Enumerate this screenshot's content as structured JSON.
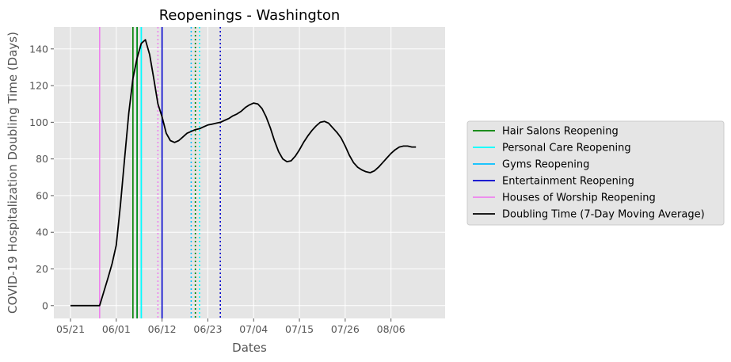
{
  "chart_data": {
    "type": "line",
    "title": "Reopenings - Washington",
    "xlabel": "Dates",
    "ylabel": "COVID-19 Hospitalization Doubling Time (Days)",
    "x_axis": {
      "type": "date",
      "start": "2020-05-21",
      "ticks": [
        "2020-05-21",
        "2020-06-01",
        "2020-06-12",
        "2020-06-23",
        "2020-07-04",
        "2020-07-15",
        "2020-07-26",
        "2020-08-06"
      ],
      "tick_labels": [
        "05/21",
        "06/01",
        "06/12",
        "06/23",
        "07/04",
        "07/15",
        "07/26",
        "08/06"
      ],
      "xlim": [
        "2020-05-17",
        "2020-08-19"
      ]
    },
    "y_axis": {
      "ticks": [
        0,
        20,
        40,
        60,
        80,
        100,
        120,
        140
      ],
      "tick_labels": [
        "0",
        "20",
        "40",
        "60",
        "80",
        "100",
        "120",
        "140"
      ],
      "ylim": [
        -7,
        152
      ]
    },
    "grid": true,
    "legend": {
      "placement": "outside-right"
    },
    "series": [
      {
        "name": "Doubling Time (7-Day Moving Average)",
        "color": "#000000",
        "points": [
          [
            "2020-05-21",
            0
          ],
          [
            "2020-05-23",
            0
          ],
          [
            "2020-05-25",
            0
          ],
          [
            "2020-05-28",
            0
          ],
          [
            "2020-05-30",
            15
          ],
          [
            "2020-05-31",
            23
          ],
          [
            "2020-06-01",
            33
          ],
          [
            "2020-06-02",
            55
          ],
          [
            "2020-06-03",
            80
          ],
          [
            "2020-06-04",
            105
          ],
          [
            "2020-06-05",
            124
          ],
          [
            "2020-06-06",
            135
          ],
          [
            "2020-06-07",
            143
          ],
          [
            "2020-06-08",
            145
          ],
          [
            "2020-06-09",
            137
          ],
          [
            "2020-06-10",
            124
          ],
          [
            "2020-06-11",
            110
          ],
          [
            "2020-06-12",
            103
          ],
          [
            "2020-06-13",
            94
          ],
          [
            "2020-06-14",
            90
          ],
          [
            "2020-06-15",
            89
          ],
          [
            "2020-06-16",
            90
          ],
          [
            "2020-06-17",
            92
          ],
          [
            "2020-06-18",
            94
          ],
          [
            "2020-06-19",
            95
          ],
          [
            "2020-06-20",
            96
          ],
          [
            "2020-06-21",
            96.5
          ],
          [
            "2020-06-22",
            97.5
          ],
          [
            "2020-06-23",
            98.5
          ],
          [
            "2020-06-24",
            99
          ],
          [
            "2020-06-25",
            99.5
          ],
          [
            "2020-06-26",
            100
          ],
          [
            "2020-06-27",
            101
          ],
          [
            "2020-06-28",
            102
          ],
          [
            "2020-06-29",
            103.5
          ],
          [
            "2020-06-30",
            104.5
          ],
          [
            "2020-07-01",
            106
          ],
          [
            "2020-07-02",
            108
          ],
          [
            "2020-07-03",
            109.5
          ],
          [
            "2020-07-04",
            110.5
          ],
          [
            "2020-07-05",
            110
          ],
          [
            "2020-07-06",
            107.5
          ],
          [
            "2020-07-07",
            103
          ],
          [
            "2020-07-08",
            97
          ],
          [
            "2020-07-09",
            90
          ],
          [
            "2020-07-10",
            84
          ],
          [
            "2020-07-11",
            80
          ],
          [
            "2020-07-12",
            78.5
          ],
          [
            "2020-07-13",
            79
          ],
          [
            "2020-07-14",
            81.5
          ],
          [
            "2020-07-15",
            85
          ],
          [
            "2020-07-16",
            89
          ],
          [
            "2020-07-17",
            92.5
          ],
          [
            "2020-07-18",
            95.5
          ],
          [
            "2020-07-19",
            98
          ],
          [
            "2020-07-20",
            100
          ],
          [
            "2020-07-21",
            100.5
          ],
          [
            "2020-07-22",
            99.5
          ],
          [
            "2020-07-23",
            97
          ],
          [
            "2020-07-24",
            94.5
          ],
          [
            "2020-07-25",
            91.5
          ],
          [
            "2020-07-26",
            87
          ],
          [
            "2020-07-27",
            82
          ],
          [
            "2020-07-28",
            78
          ],
          [
            "2020-07-29",
            75.5
          ],
          [
            "2020-07-30",
            74
          ],
          [
            "2020-07-31",
            73
          ],
          [
            "2020-08-01",
            72.5
          ],
          [
            "2020-08-02",
            73.5
          ],
          [
            "2020-08-03",
            75.5
          ],
          [
            "2020-08-04",
            78
          ],
          [
            "2020-08-05",
            80.5
          ],
          [
            "2020-08-06",
            83
          ],
          [
            "2020-08-07",
            85
          ],
          [
            "2020-08-08",
            86.5
          ],
          [
            "2020-08-09",
            87
          ],
          [
            "2020-08-10",
            87
          ],
          [
            "2020-08-11",
            86.5
          ],
          [
            "2020-08-12",
            86.5
          ]
        ]
      }
    ],
    "vlines": [
      {
        "name": "Houses of Worship Reopening",
        "color": "#ee82ee",
        "style": "solid",
        "date": "2020-05-28",
        "legend": true
      },
      {
        "name": "Hair Salons Reopening",
        "color": "#008000",
        "style": "solid",
        "date": "2020-06-05",
        "legend": true
      },
      {
        "name": "Personal Care Reopening",
        "color": "#00ffff",
        "style": "solid",
        "date": "2020-06-06",
        "legend": true
      },
      {
        "name": "Hair Salons Reopening",
        "color": "#008000",
        "style": "solid",
        "date": "2020-06-06",
        "legend": false
      },
      {
        "name": "Gyms Reopening",
        "color": "#00bfff",
        "style": "solid",
        "date": "2020-06-07",
        "legend": true
      },
      {
        "name": "Personal Care Reopening",
        "color": "#00ffff",
        "style": "solid",
        "date": "2020-06-07",
        "legend": false
      },
      {
        "name": "Entertainment Reopening",
        "color": "#0000cd",
        "style": "solid",
        "date": "2020-06-12",
        "legend": true
      },
      {
        "name": "Houses of Worship Reopening",
        "color": "#ee82ee",
        "style": "dotted",
        "date": "2020-06-11",
        "legend": false
      },
      {
        "name": "Gyms Reopening",
        "color": "#00bfff",
        "style": "dotted",
        "date": "2020-06-19",
        "legend": false
      },
      {
        "name": "Hair Salons Reopening",
        "color": "#008000",
        "style": "dotted",
        "date": "2020-06-20",
        "legend": false
      },
      {
        "name": "Personal Care Reopening",
        "color": "#00ffff",
        "style": "dotted",
        "date": "2020-06-21",
        "legend": false
      },
      {
        "name": "Entertainment Reopening",
        "color": "#0000cd",
        "style": "dotted",
        "date": "2020-06-26",
        "legend": false
      }
    ],
    "legend_entries": [
      {
        "label": "Hair Salons Reopening",
        "color": "#008000"
      },
      {
        "label": "Personal Care Reopening",
        "color": "#00ffff"
      },
      {
        "label": "Gyms Reopening",
        "color": "#00bfff"
      },
      {
        "label": "Entertainment Reopening",
        "color": "#0000cd"
      },
      {
        "label": "Houses of Worship Reopening",
        "color": "#ee82ee"
      },
      {
        "label": "Doubling Time (7-Day Moving Average)",
        "color": "#000000"
      }
    ]
  },
  "colors": {
    "plot_background": "#e5e5e5",
    "grid": "#ffffff",
    "legend_background": "#e5e5e5",
    "legend_border": "#cccccc"
  }
}
